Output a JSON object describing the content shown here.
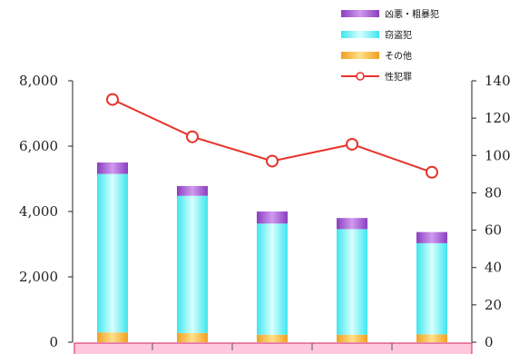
{
  "chart_data": {
    "type": "bar",
    "categories": [
      "",
      "",
      "",
      "",
      ""
    ],
    "series": [
      {
        "name": "その他",
        "kind": "bar-stack",
        "axis": "left",
        "color": "#f5b43c",
        "values": [
          300,
          280,
          230,
          230,
          240
        ]
      },
      {
        "name": "窃盗犯",
        "kind": "bar-stack",
        "axis": "left",
        "color": "#7ff7ff",
        "values": [
          4850,
          4200,
          3400,
          3230,
          2790
        ]
      },
      {
        "name": "凶悪・粗暴犯",
        "kind": "bar-stack",
        "axis": "left",
        "color": "#b070d8",
        "values": [
          350,
          300,
          370,
          340,
          340
        ]
      },
      {
        "name": "性犯罪",
        "kind": "line",
        "axis": "right",
        "color": "#e8332a",
        "values": [
          130,
          110,
          97,
          106,
          91
        ]
      }
    ],
    "left_axis": {
      "ylim": [
        0,
        8000
      ],
      "ticks": [
        "0",
        "2,000",
        "4,000",
        "6,000",
        "8,000"
      ],
      "tick_values": [
        0,
        2000,
        4000,
        6000,
        8000
      ]
    },
    "right_axis": {
      "ylim": [
        0,
        140
      ],
      "ticks": [
        "0",
        "20",
        "40",
        "60",
        "80",
        "100",
        "120",
        "140"
      ],
      "tick_values": [
        0,
        20,
        40,
        60,
        80,
        100,
        120,
        140
      ]
    },
    "legend_position": "top-right",
    "grid": false,
    "xlabel": "",
    "ylabel": "",
    "title": ""
  }
}
